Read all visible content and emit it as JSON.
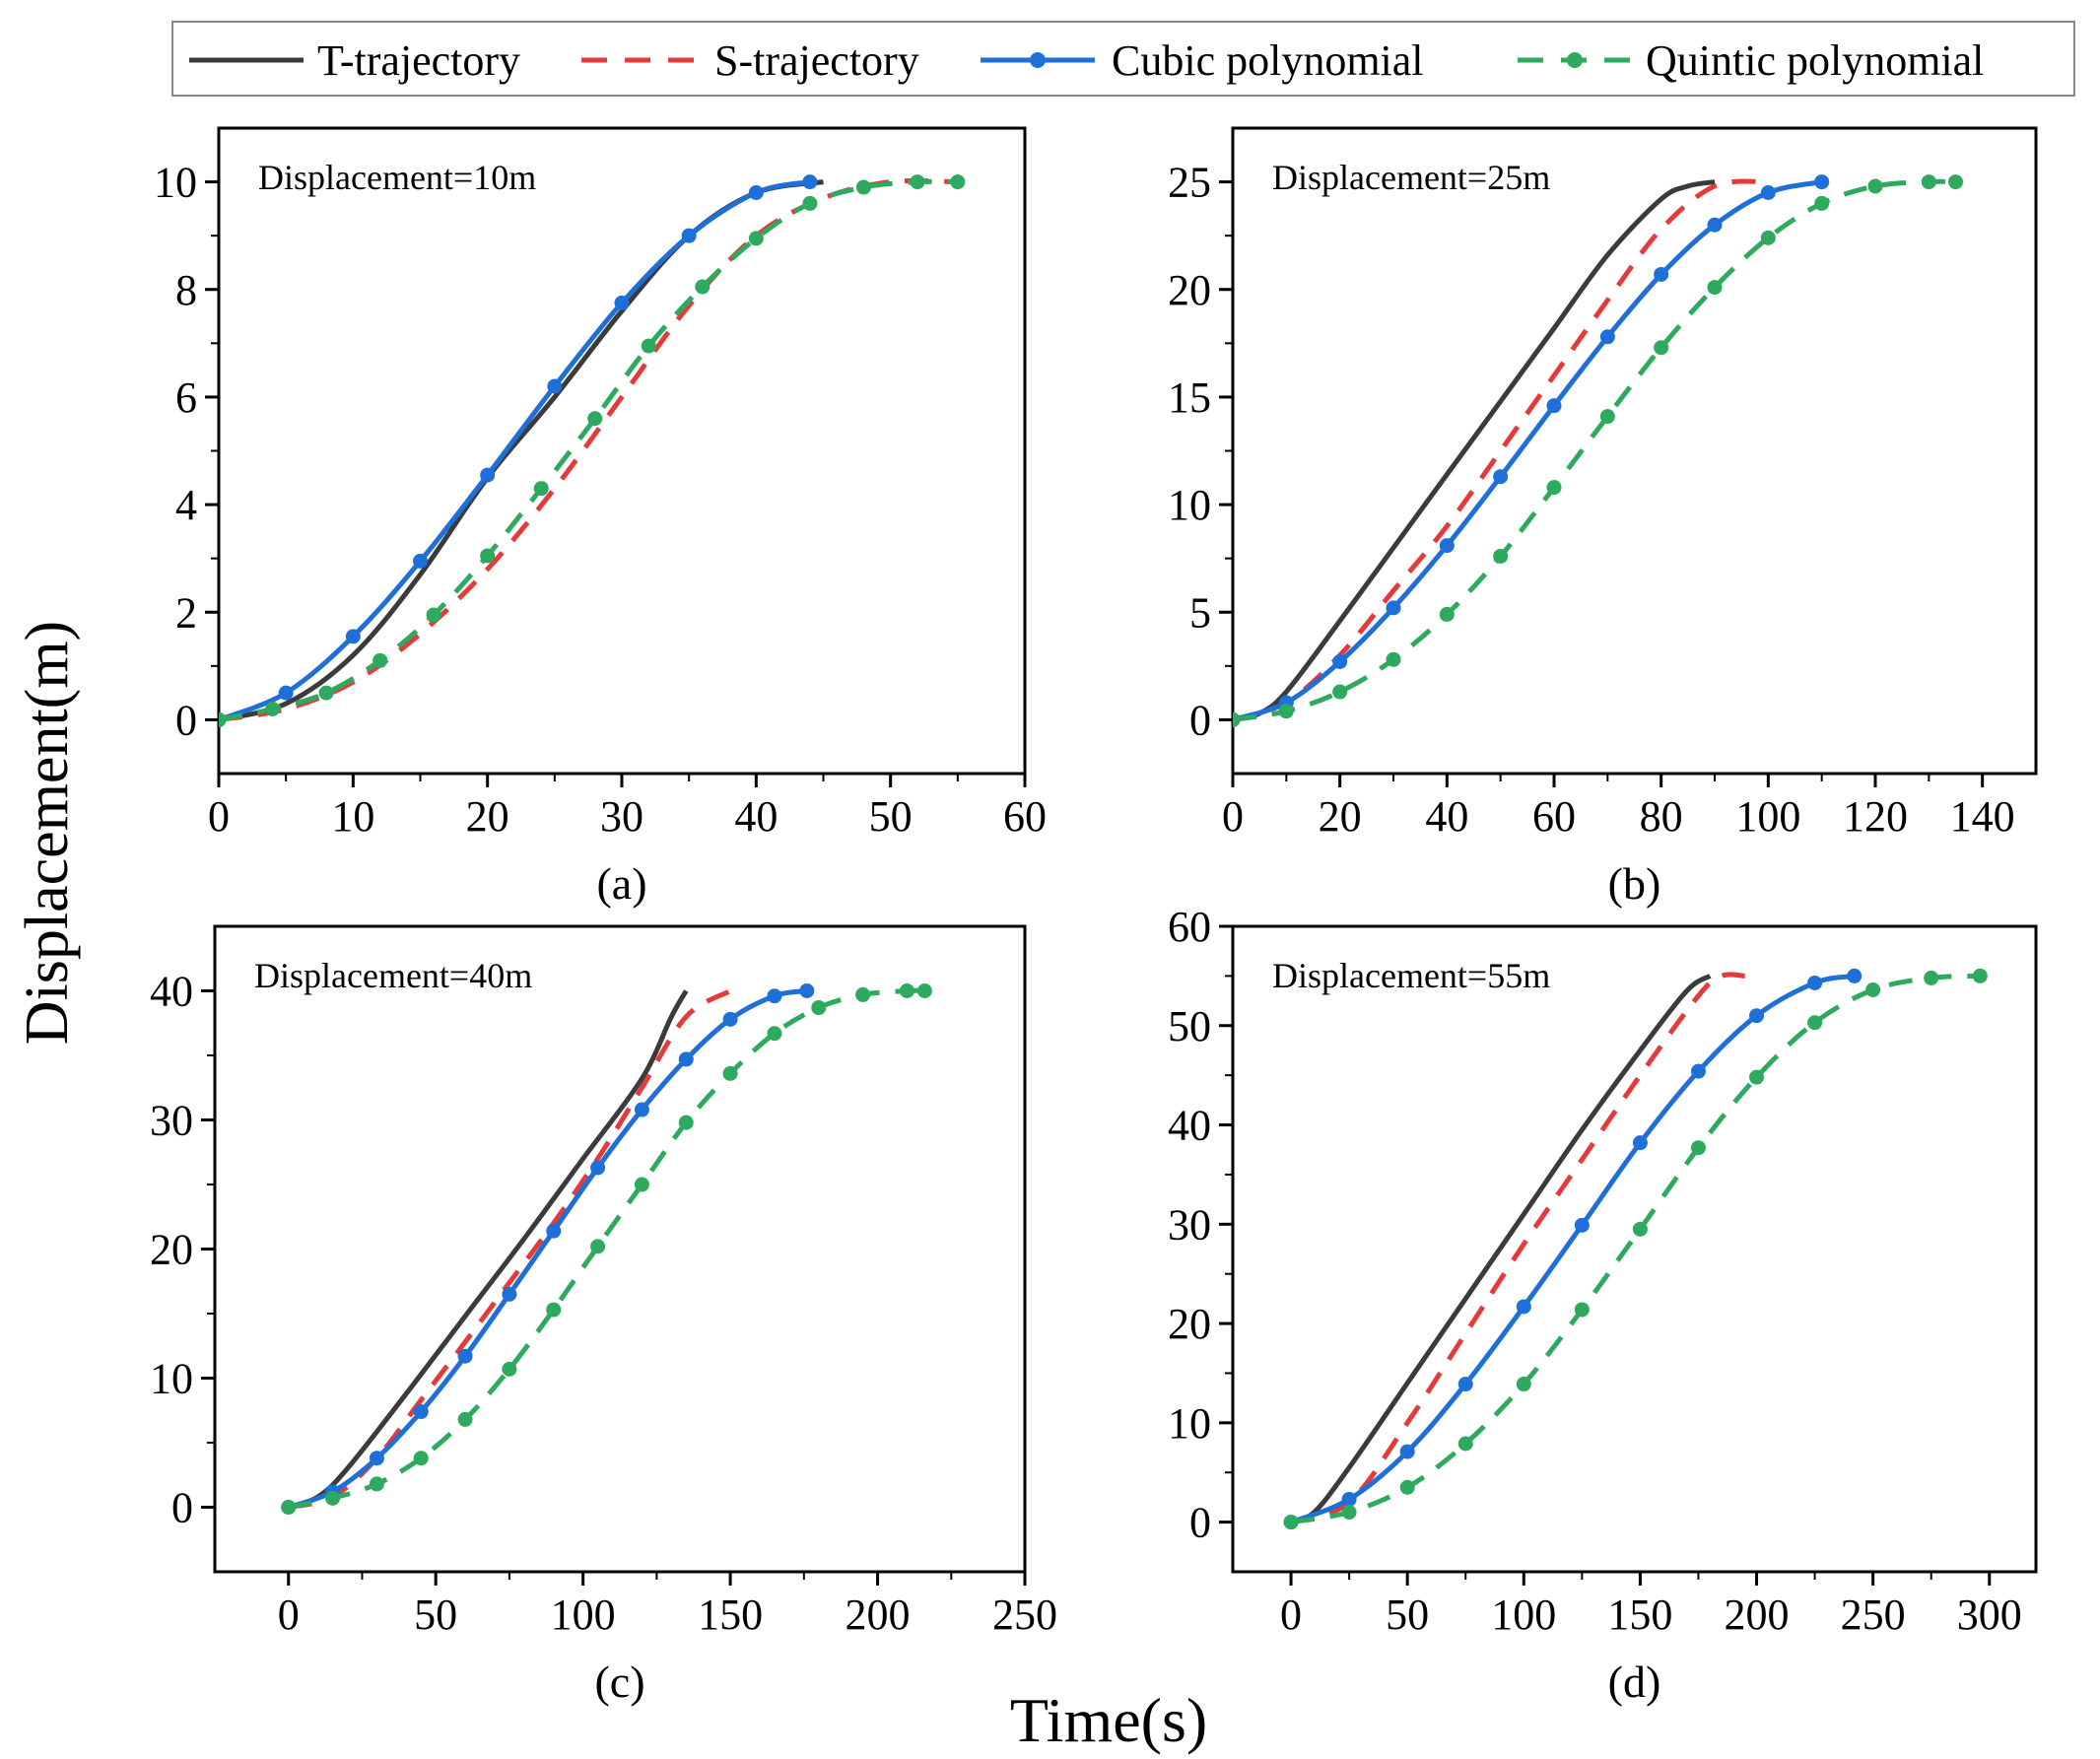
{
  "figure": {
    "ylabel": "Displacement(m)",
    "xlabel": "Time(s)"
  },
  "legend": {
    "position": "top",
    "entries": [
      {
        "name": "T-trajectory",
        "color": "#3b3b3b",
        "style": "solid",
        "marker": "none"
      },
      {
        "name": "S-trajectory",
        "color": "#e53a3a",
        "style": "dashed",
        "marker": "none"
      },
      {
        "name": "Cubic polynomial",
        "color": "#1f6fd8",
        "style": "solid",
        "marker": "circle"
      },
      {
        "name": "Quintic polynomial",
        "color": "#2eaa5f",
        "style": "dashed",
        "marker": "circle"
      }
    ]
  },
  "chart_data": [
    {
      "type": "line",
      "panel_label": "(a)",
      "annotation": "Displacement=10m",
      "xlim": [
        0,
        60
      ],
      "ylim": [
        -1,
        11
      ],
      "xticks": [
        0,
        10,
        20,
        30,
        40,
        50,
        60
      ],
      "yticks": [
        0,
        2,
        4,
        6,
        8,
        10
      ],
      "series": [
        {
          "name": "T-trajectory",
          "x": [
            0,
            5,
            10,
            15,
            20,
            25,
            30,
            35,
            40,
            45
          ],
          "y": [
            0,
            0.3,
            1.2,
            2.7,
            4.5,
            6.0,
            7.6,
            9.0,
            9.8,
            10.0
          ]
        },
        {
          "name": "S-trajectory",
          "x": [
            0,
            5,
            10,
            15,
            20,
            25,
            30,
            35,
            40,
            45,
            50,
            55
          ],
          "y": [
            0,
            0.2,
            0.7,
            1.6,
            2.8,
            4.3,
            6.0,
            7.7,
            9.0,
            9.7,
            10.0,
            10.0
          ]
        },
        {
          "name": "Cubic polynomial",
          "x": [
            0,
            5,
            10,
            15,
            20,
            25,
            30,
            35,
            40,
            44
          ],
          "y": [
            0,
            0.5,
            1.55,
            2.95,
            4.55,
            6.2,
            7.75,
            9.0,
            9.8,
            10.0
          ]
        },
        {
          "name": "Quintic polynomial",
          "x": [
            0,
            4,
            8,
            12,
            16,
            20,
            24,
            28,
            32,
            36,
            40,
            44,
            48,
            52,
            55
          ],
          "y": [
            0,
            0.2,
            0.5,
            1.1,
            1.95,
            3.05,
            4.3,
            5.6,
            6.95,
            8.05,
            8.95,
            9.6,
            9.9,
            10.0,
            10.0
          ]
        }
      ]
    },
    {
      "type": "line",
      "panel_label": "(b)",
      "annotation": "Displacement=25m",
      "xlim": [
        0,
        150
      ],
      "ylim": [
        -2.5,
        27.5
      ],
      "xticks": [
        0,
        20,
        40,
        60,
        80,
        100,
        120,
        140
      ],
      "yticks": [
        0,
        5,
        10,
        15,
        20,
        25
      ],
      "series": [
        {
          "name": "T-trajectory",
          "x": [
            0,
            5,
            10,
            20,
            30,
            40,
            50,
            60,
            70,
            80,
            85,
            90
          ],
          "y": [
            0,
            0.3,
            1.3,
            4.6,
            8.0,
            11.4,
            14.8,
            18.2,
            21.6,
            24.2,
            24.8,
            25.0
          ]
        },
        {
          "name": "S-trajectory",
          "x": [
            0,
            10,
            20,
            30,
            40,
            50,
            60,
            70,
            80,
            90,
            100
          ],
          "y": [
            0,
            0.8,
            3.0,
            6.0,
            9.0,
            12.5,
            16.0,
            19.5,
            22.8,
            24.8,
            25.0
          ]
        },
        {
          "name": "Cubic polynomial",
          "x": [
            0,
            10,
            20,
            30,
            40,
            50,
            60,
            70,
            80,
            90,
            100,
            110
          ],
          "y": [
            0,
            0.8,
            2.7,
            5.2,
            8.1,
            11.3,
            14.6,
            17.8,
            20.7,
            23.0,
            24.5,
            25.0
          ]
        },
        {
          "name": "Quintic polynomial",
          "x": [
            0,
            10,
            20,
            30,
            40,
            50,
            60,
            70,
            80,
            90,
            100,
            110,
            120,
            130,
            135
          ],
          "y": [
            0,
            0.4,
            1.3,
            2.8,
            4.9,
            7.6,
            10.8,
            14.1,
            17.3,
            20.1,
            22.4,
            24.0,
            24.8,
            25.0,
            25.0
          ]
        }
      ]
    },
    {
      "type": "line",
      "panel_label": "(c)",
      "annotation": "Displacement=40m",
      "xlim": [
        -25,
        250
      ],
      "ylim": [
        -5,
        45
      ],
      "xticks": [
        0,
        50,
        100,
        150,
        200,
        250
      ],
      "yticks": [
        0,
        10,
        20,
        30,
        40
      ],
      "series": [
        {
          "name": "T-trajectory",
          "x": [
            0,
            10,
            20,
            40,
            60,
            80,
            100,
            120,
            130,
            135
          ],
          "y": [
            0,
            0.8,
            3.0,
            8.8,
            14.8,
            20.8,
            27.0,
            33.2,
            38.0,
            40.0
          ]
        },
        {
          "name": "S-trajectory",
          "x": [
            0,
            15,
            30,
            45,
            60,
            75,
            90,
            105,
            120,
            135,
            150
          ],
          "y": [
            0,
            0.8,
            3.8,
            8.3,
            12.8,
            17.4,
            22.0,
            27.0,
            32.5,
            38.0,
            40.0
          ]
        },
        {
          "name": "Cubic polynomial",
          "x": [
            0,
            15,
            30,
            45,
            60,
            75,
            90,
            105,
            120,
            135,
            150,
            165,
            176
          ],
          "y": [
            0,
            1.2,
            3.8,
            7.4,
            11.7,
            16.5,
            21.4,
            26.3,
            30.8,
            34.7,
            37.8,
            39.6,
            40.0
          ]
        },
        {
          "name": "Quintic polynomial",
          "x": [
            0,
            15,
            30,
            45,
            60,
            75,
            90,
            105,
            120,
            135,
            150,
            165,
            180,
            195,
            210,
            216
          ],
          "y": [
            0,
            0.7,
            1.8,
            3.8,
            6.8,
            10.7,
            15.3,
            20.2,
            25.0,
            29.8,
            33.6,
            36.7,
            38.7,
            39.7,
            40.0,
            40.0
          ]
        }
      ]
    },
    {
      "type": "line",
      "panel_label": "(d)",
      "annotation": "Displacement=55m",
      "xlim": [
        -25,
        320
      ],
      "ylim": [
        -5,
        60
      ],
      "xticks": [
        0,
        50,
        100,
        150,
        200,
        250,
        300
      ],
      "yticks": [
        0,
        10,
        20,
        30,
        40,
        50,
        60
      ],
      "series": [
        {
          "name": "T-trajectory",
          "x": [
            0,
            10,
            25,
            50,
            75,
            100,
            125,
            150,
            170,
            180
          ],
          "y": [
            0,
            1.0,
            5.5,
            14.0,
            22.5,
            31.0,
            39.5,
            47.5,
            53.5,
            55.0
          ]
        },
        {
          "name": "S-trajectory",
          "x": [
            0,
            25,
            50,
            75,
            100,
            125,
            150,
            175,
            185,
            195
          ],
          "y": [
            0,
            2.0,
            10.0,
            19.0,
            28.0,
            36.5,
            45.0,
            53.0,
            55.0,
            55.0
          ]
        },
        {
          "name": "Cubic polynomial",
          "x": [
            0,
            25,
            50,
            75,
            100,
            125,
            150,
            175,
            200,
            225,
            242
          ],
          "y": [
            0,
            2.3,
            7.1,
            13.9,
            21.7,
            29.9,
            38.2,
            45.4,
            51.0,
            54.3,
            55.0
          ]
        },
        {
          "name": "Quintic polynomial",
          "x": [
            0,
            25,
            50,
            75,
            100,
            125,
            150,
            175,
            200,
            225,
            250,
            275,
            296
          ],
          "y": [
            0,
            1.0,
            3.5,
            7.9,
            13.9,
            21.4,
            29.5,
            37.7,
            44.8,
            50.3,
            53.6,
            54.8,
            55.0
          ]
        }
      ]
    }
  ]
}
